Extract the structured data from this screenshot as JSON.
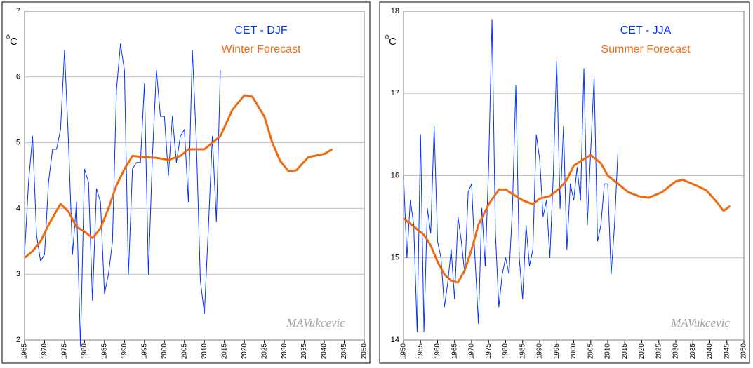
{
  "chart_data": [
    {
      "type": "line",
      "unit_super": "0",
      "unit": "C",
      "watermark": "MAVukcevic",
      "xlim": [
        1965,
        2050
      ],
      "xticks": [
        1965,
        1970,
        1975,
        1980,
        1985,
        1990,
        1995,
        2000,
        2005,
        2010,
        2015,
        2020,
        2025,
        2030,
        2035,
        2040,
        2045,
        2050
      ],
      "ylim": [
        2,
        7
      ],
      "yticks": [
        2,
        3,
        4,
        5,
        6,
        7
      ],
      "grid": true,
      "series": [
        {
          "name": "CET - DJF",
          "color": "#0033ff",
          "x": [
            1965,
            1966,
            1967,
            1968,
            1969,
            1970,
            1971,
            1972,
            1973,
            1974,
            1975,
            1976,
            1977,
            1978,
            1979,
            1980,
            1981,
            1982,
            1983,
            1984,
            1985,
            1986,
            1987,
            1988,
            1989,
            1990,
            1991,
            1992,
            1993,
            1994,
            1995,
            1996,
            1997,
            1998,
            1999,
            2000,
            2001,
            2002,
            2003,
            2004,
            2005,
            2006,
            2007,
            2008,
            2009,
            2010,
            2011,
            2012,
            2013,
            2014
          ],
          "values": [
            3.3,
            4.4,
            5.1,
            3.6,
            3.2,
            3.3,
            4.4,
            4.9,
            4.9,
            5.2,
            6.4,
            5.0,
            3.3,
            4.1,
            1.9,
            4.6,
            4.4,
            2.6,
            4.3,
            4.1,
            2.7,
            3.0,
            3.5,
            5.8,
            6.5,
            6.1,
            3.0,
            4.6,
            4.7,
            4.7,
            5.9,
            3.0,
            4.8,
            6.1,
            5.4,
            5.4,
            4.5,
            5.4,
            4.7,
            5.1,
            5.2,
            4.1,
            6.4,
            5.0,
            2.9,
            2.4,
            3.7,
            5.1,
            3.8,
            6.1
          ]
        },
        {
          "name": "Winter Forecast",
          "color": "#f26a10",
          "x": [
            1965,
            1967,
            1969,
            1971,
            1974,
            1976,
            1978,
            1980,
            1982,
            1984,
            1986,
            1988,
            1990,
            1992,
            1995,
            1998,
            2001,
            2004,
            2006,
            2010,
            2014,
            2017,
            2020,
            2022,
            2025,
            2027,
            2029,
            2031,
            2033,
            2036,
            2040,
            2042
          ],
          "values": [
            3.25,
            3.35,
            3.5,
            3.75,
            4.07,
            3.95,
            3.72,
            3.65,
            3.55,
            3.7,
            4.0,
            4.35,
            4.6,
            4.8,
            4.78,
            4.77,
            4.74,
            4.8,
            4.9,
            4.9,
            5.1,
            5.5,
            5.72,
            5.7,
            5.4,
            5.0,
            4.72,
            4.57,
            4.58,
            4.78,
            4.83,
            4.9
          ]
        }
      ]
    },
    {
      "type": "line",
      "unit_super": "0",
      "unit": "C",
      "watermark": "MAVukcevic",
      "xlim": [
        1950,
        2050
      ],
      "xticks": [
        1950,
        1955,
        1960,
        1965,
        1970,
        1975,
        1980,
        1985,
        1990,
        1995,
        2000,
        2005,
        2010,
        2015,
        2020,
        2025,
        2030,
        2035,
        2040,
        2045,
        2050
      ],
      "ylim": [
        14,
        18
      ],
      "yticks": [
        14,
        15,
        16,
        17,
        18
      ],
      "grid": true,
      "series": [
        {
          "name": "CET - JJA",
          "color": "#0033ff",
          "x": [
            1950,
            1951,
            1952,
            1953,
            1954,
            1955,
            1956,
            1957,
            1958,
            1959,
            1960,
            1961,
            1962,
            1963,
            1964,
            1965,
            1966,
            1967,
            1968,
            1969,
            1970,
            1971,
            1972,
            1973,
            1974,
            1975,
            1976,
            1977,
            1978,
            1979,
            1980,
            1981,
            1982,
            1983,
            1984,
            1985,
            1986,
            1987,
            1988,
            1989,
            1990,
            1991,
            1992,
            1993,
            1994,
            1995,
            1996,
            1997,
            1998,
            1999,
            2000,
            2001,
            2002,
            2003,
            2004,
            2005,
            2006,
            2007,
            2008,
            2009,
            2010,
            2011,
            2012,
            2013
          ],
          "values": [
            16.0,
            15.0,
            15.7,
            15.4,
            14.1,
            16.5,
            14.1,
            15.6,
            15.3,
            16.6,
            15.2,
            15.0,
            14.4,
            14.7,
            15.1,
            14.5,
            15.5,
            15.2,
            14.8,
            15.8,
            15.9,
            15.0,
            14.2,
            15.6,
            14.9,
            16.1,
            17.9,
            15.3,
            14.4,
            14.8,
            15.0,
            14.8,
            15.6,
            17.1,
            15.0,
            14.5,
            15.4,
            14.9,
            15.1,
            16.5,
            16.2,
            15.5,
            15.7,
            15.0,
            16.0,
            17.4,
            15.6,
            16.6,
            15.1,
            15.9,
            15.7,
            16.1,
            15.7,
            17.3,
            15.4,
            16.3,
            17.2,
            15.2,
            15.4,
            15.9,
            15.9,
            14.8,
            15.4,
            16.3
          ]
        },
        {
          "name": "Summer Forecast",
          "color": "#f26a10",
          "x": [
            1950,
            1953,
            1956,
            1958,
            1960,
            1962,
            1964,
            1966,
            1968,
            1970,
            1972,
            1975,
            1978,
            1980,
            1983,
            1985,
            1988,
            1990,
            1993,
            1996,
            1998,
            2000,
            2003,
            2005,
            2008,
            2010,
            2013,
            2016,
            2019,
            2022,
            2026,
            2030,
            2032,
            2036,
            2039,
            2042,
            2044,
            2046
          ],
          "values": [
            15.48,
            15.38,
            15.28,
            15.15,
            14.95,
            14.8,
            14.72,
            14.7,
            14.85,
            15.1,
            15.4,
            15.65,
            15.83,
            15.83,
            15.75,
            15.7,
            15.65,
            15.72,
            15.75,
            15.85,
            15.95,
            16.12,
            16.2,
            16.25,
            16.15,
            16.0,
            15.9,
            15.8,
            15.75,
            15.73,
            15.8,
            15.93,
            15.95,
            15.88,
            15.82,
            15.68,
            15.57,
            15.63
          ]
        }
      ]
    }
  ]
}
